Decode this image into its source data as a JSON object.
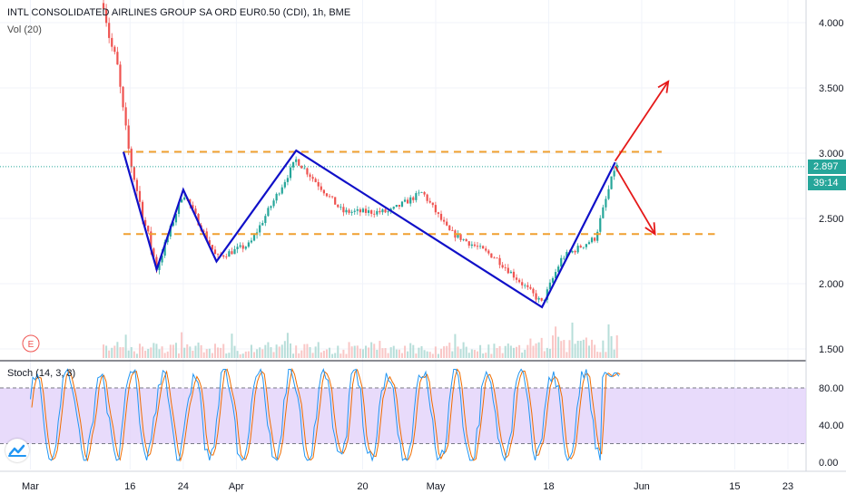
{
  "header": {
    "title": "INTL CONSOLIDATED AIRLINES GROUP SA ORD EUR0.50 (CDI), 1h, BME",
    "volume_label": "Vol (20)",
    "stoch_label": "Stoch (14, 3, 3)",
    "earnings_marker": "E"
  },
  "colors": {
    "up": "#26a69a",
    "down": "#ef5350",
    "pattern_line": "#1010c8",
    "level_line": "#f0a030",
    "arrow": "#e51919",
    "stoch_k": "#2196f3",
    "stoch_d": "#ef6c00",
    "stoch_band": "#e0cffa",
    "price_line": "#26a69a"
  },
  "badges": {
    "last_price": "2.897",
    "countdown": "39:14"
  },
  "chart_data": [
    {
      "type": "line",
      "title": "INTL CONSOLIDATED AIRLINES GROUP SA ORD EUR0.50 (CDI), 1h, BME",
      "x_ticks": [
        "Mar",
        "16",
        "24",
        "Apr",
        "20",
        "May",
        "18",
        "Jun",
        "15",
        "23"
      ],
      "y_ticks": [
        "4.000",
        "3.500",
        "3.000",
        "2.500",
        "2.000",
        "1.500"
      ],
      "ylim": [
        1.42,
        4.25
      ],
      "last_price": 2.897,
      "price_path": [
        {
          "date": "Mar 12",
          "price": 4.15
        },
        {
          "date": "Mar 13",
          "price": 3.85
        },
        {
          "date": "Mar 14",
          "price": 3.7
        },
        {
          "date": "Mar 15",
          "price": 3.3
        },
        {
          "date": "Mar 16",
          "price": 2.95
        },
        {
          "date": "Mar 18",
          "price": 2.5
        },
        {
          "date": "Mar 20",
          "price": 2.12
        },
        {
          "date": "Mar 24",
          "price": 2.7
        },
        {
          "date": "Mar 29",
          "price": 2.2
        },
        {
          "date": "Apr 3",
          "price": 2.3
        },
        {
          "date": "Apr 10",
          "price": 2.95
        },
        {
          "date": "Apr 17",
          "price": 2.55
        },
        {
          "date": "Apr 24",
          "price": 2.55
        },
        {
          "date": "Apr 29",
          "price": 2.7
        },
        {
          "date": "May 3",
          "price": 2.4
        },
        {
          "date": "May 10",
          "price": 2.2
        },
        {
          "date": "May 17",
          "price": 1.85
        },
        {
          "date": "May 20",
          "price": 2.2
        },
        {
          "date": "May 25",
          "price": 2.35
        },
        {
          "date": "May 28",
          "price": 2.9
        }
      ],
      "pattern_points": [
        {
          "date": "Mar 15",
          "price": 3.01
        },
        {
          "date": "Mar 20",
          "price": 2.11
        },
        {
          "date": "Mar 24",
          "price": 2.72
        },
        {
          "date": "Mar 29",
          "price": 2.17
        },
        {
          "date": "Apr 10",
          "price": 3.02
        },
        {
          "date": "May 17",
          "price": 1.82
        },
        {
          "date": "May 28",
          "price": 2.93
        }
      ],
      "levels": [
        {
          "price": 3.01,
          "from": "Mar 15",
          "to": "Jun 4"
        },
        {
          "price": 2.38,
          "from": "Mar 15",
          "to": "Jun 12"
        }
      ],
      "arrows": [
        {
          "from_date": "May 28",
          "from_price": 2.94,
          "to_date": "Jun 5",
          "to_price": 3.55
        },
        {
          "from_date": "May 28",
          "from_price": 2.9,
          "to_date": "Jun 3",
          "to_price": 2.38
        }
      ]
    },
    {
      "type": "line",
      "title": "Stoch (14, 3, 3)",
      "y_ticks": [
        "80.00",
        "40.00",
        "0.00"
      ],
      "ylim": [
        -5,
        108
      ],
      "band": [
        20,
        80
      ]
    }
  ]
}
